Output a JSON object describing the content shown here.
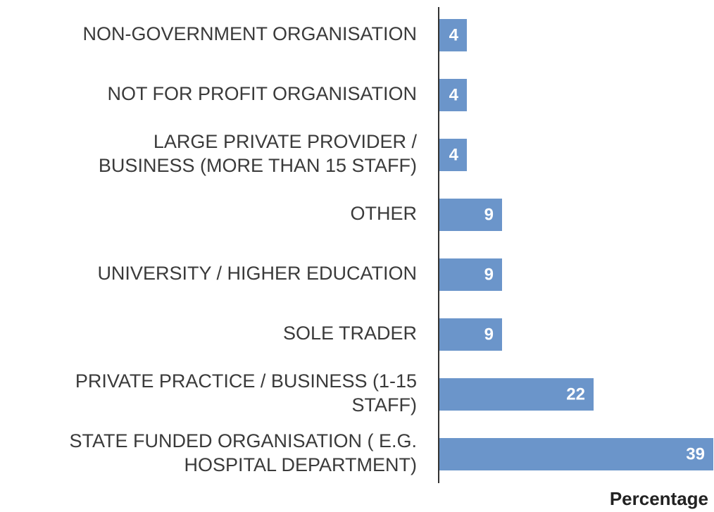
{
  "chart_data": {
    "type": "hbar",
    "x_label": "Percentage",
    "categories": [
      "NON-GOVERNMENT ORGANISATION",
      "NOT FOR PROFIT ORGANISATION",
      "LARGE PRIVATE PROVIDER /\nBUSINESS (MORE THAN 15 STAFF)",
      "OTHER",
      "UNIVERSITY / HIGHER EDUCATION",
      "SOLE TRADER",
      "PRIVATE PRACTICE / BUSINESS (1-15\nSTAFF)",
      "STATE FUNDED ORGANISATION ( E.G.\nHOSPITAL DEPARTMENT)"
    ],
    "values": [
      4,
      4,
      4,
      9,
      9,
      9,
      22,
      39
    ],
    "color": "#6b95ca",
    "xlim": [
      0,
      39
    ]
  }
}
